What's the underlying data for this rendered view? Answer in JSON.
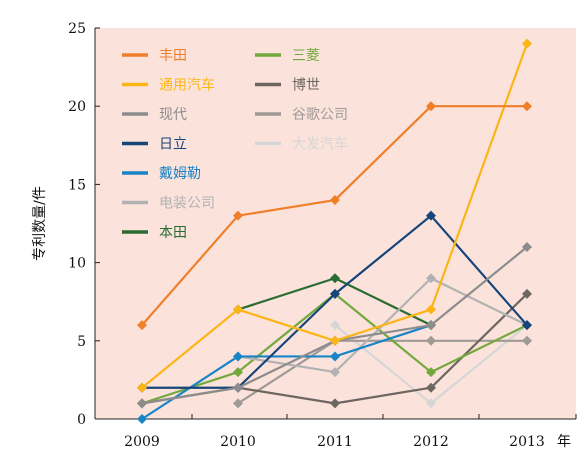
{
  "chart_data": {
    "type": "line",
    "title": "",
    "xlabel": "年",
    "ylabel": "专利数量/件",
    "x": [
      "2009",
      "2010",
      "2011",
      "2012",
      "2013"
    ],
    "ylim": [
      0,
      25
    ],
    "yticks": [
      "0",
      "5",
      "10",
      "15",
      "20",
      "25"
    ],
    "grid": false,
    "legend_position": "top-left",
    "background_color": "#fbe3dc",
    "series": [
      {
        "name": "丰田",
        "color": "#f07f2a",
        "values": [
          6,
          13,
          14,
          20,
          20
        ]
      },
      {
        "name": "通用汽车",
        "color": "#fbb516",
        "values": [
          2,
          7,
          5,
          7,
          24
        ]
      },
      {
        "name": "现代",
        "color": "#8c8c8c",
        "values": [
          1,
          2,
          5,
          6,
          11
        ]
      },
      {
        "name": "日立",
        "color": "#17457a",
        "values": [
          2,
          2,
          8,
          13,
          6
        ]
      },
      {
        "name": "戴姆勒",
        "color": "#1984c7",
        "values": [
          0,
          4,
          4,
          6,
          null
        ]
      },
      {
        "name": "电装公司",
        "color": "#b2b2b2",
        "values": [
          null,
          4,
          3,
          9,
          6
        ]
      },
      {
        "name": "本田",
        "color": "#2a6b32",
        "values": [
          null,
          7,
          9,
          6,
          null
        ]
      },
      {
        "name": "三菱",
        "color": "#73a83c",
        "values": [
          1,
          3,
          8,
          3,
          6
        ]
      },
      {
        "name": "博世",
        "color": "#6e6660",
        "values": [
          1,
          2,
          1,
          2,
          8
        ]
      },
      {
        "name": "谷歌公司",
        "color": "#a09a96",
        "values": [
          null,
          1,
          5,
          5,
          5
        ]
      },
      {
        "name": "大发汽车",
        "color": "#d6d6d6",
        "values": [
          null,
          null,
          6,
          1,
          6
        ]
      }
    ]
  }
}
